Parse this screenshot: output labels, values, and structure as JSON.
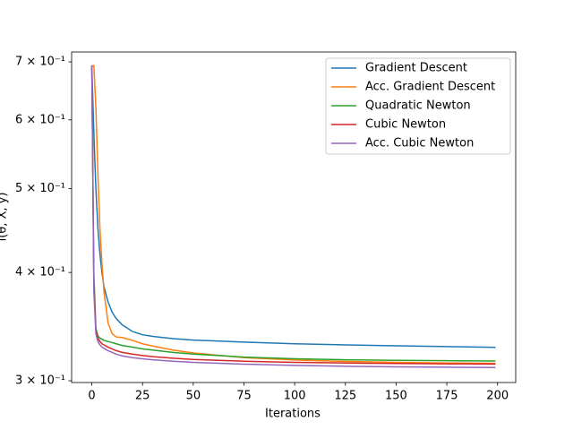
{
  "chart_data": {
    "type": "line",
    "xlabel": "Iterations",
    "ylabel": "l(θ, X, y)",
    "x": [
      0,
      1,
      2,
      3,
      4,
      5,
      6,
      8,
      10,
      12,
      15,
      20,
      25,
      30,
      40,
      50,
      75,
      100,
      125,
      150,
      175,
      199
    ],
    "series": [
      {
        "name": "Gradient Descent",
        "color": "#1f77b4",
        "values": [
          0.693,
          0.58,
          0.5,
          0.45,
          0.42,
          0.4,
          0.385,
          0.37,
          0.36,
          0.354,
          0.348,
          0.342,
          0.339,
          0.3375,
          0.3355,
          0.3342,
          0.3325,
          0.331,
          0.33,
          0.3292,
          0.3285,
          0.3278
        ]
      },
      {
        "name": "Acc. Gradient Descent",
        "color": "#ff7f0e",
        "values": [
          0.693,
          0.693,
          0.62,
          0.52,
          0.45,
          0.41,
          0.38,
          0.35,
          0.34,
          0.337,
          0.3365,
          0.334,
          0.331,
          0.329,
          0.3255,
          0.323,
          0.319,
          0.317,
          0.3158,
          0.315,
          0.3145,
          0.3142
        ]
      },
      {
        "name": "Quadratic Newton",
        "color": "#2ca02c",
        "values": [
          0.693,
          0.4,
          0.345,
          0.338,
          0.336,
          0.335,
          0.334,
          0.333,
          0.332,
          0.331,
          0.3295,
          0.328,
          0.3265,
          0.3255,
          0.3235,
          0.322,
          0.3195,
          0.318,
          0.3172,
          0.3167,
          0.3164,
          0.3162
        ]
      },
      {
        "name": "Cubic Newton",
        "color": "#d62728",
        "values": [
          0.693,
          0.39,
          0.343,
          0.336,
          0.333,
          0.331,
          0.33,
          0.328,
          0.3265,
          0.325,
          0.3235,
          0.322,
          0.3208,
          0.3198,
          0.3185,
          0.3175,
          0.316,
          0.315,
          0.3145,
          0.3141,
          0.3138,
          0.3136
        ]
      },
      {
        "name": "Acc. Cubic Newton",
        "color": "#9467bd",
        "values": [
          0.693,
          0.38,
          0.34,
          0.333,
          0.33,
          0.328,
          0.327,
          0.325,
          0.3235,
          0.322,
          0.3205,
          0.319,
          0.318,
          0.3172,
          0.316,
          0.315,
          0.3135,
          0.3125,
          0.3118,
          0.3113,
          0.311,
          0.3107
        ]
      }
    ],
    "xlim": [
      -9.95,
      208.95
    ],
    "xticks": [
      0,
      25,
      50,
      75,
      100,
      125,
      150,
      175,
      200
    ],
    "ylim": [
      0.2986,
      0.7186
    ],
    "log_y": true,
    "yticks": [
      {
        "value": 0.3,
        "label": "3 × 10⁻¹"
      },
      {
        "value": 0.4,
        "label": "4 × 10⁻¹"
      },
      {
        "value": 0.5,
        "label": "5 × 10⁻¹"
      },
      {
        "value": 0.6,
        "label": "6 × 10⁻¹"
      },
      {
        "value": 0.7,
        "label": "7 × 10⁻¹"
      }
    ],
    "legend": "upper right"
  }
}
